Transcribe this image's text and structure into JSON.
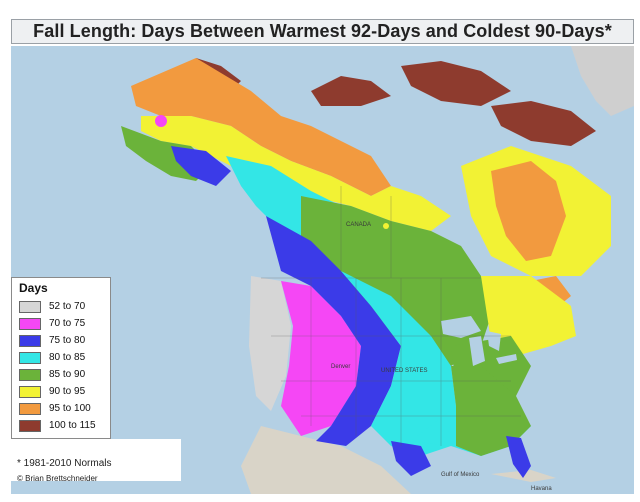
{
  "title": "Fall Length: Days Between Warmest 92-Days and Coldest 90-Days*",
  "legend": {
    "title": "Days",
    "items": [
      {
        "label": "52 to 70",
        "color": "#d6d6d6"
      },
      {
        "label": "70 to 75",
        "color": "#f547f5"
      },
      {
        "label": "75 to 80",
        "color": "#3b3be8"
      },
      {
        "label": "80 to 85",
        "color": "#33e6e6"
      },
      {
        "label": "85 to 90",
        "color": "#6bb33a"
      },
      {
        "label": "90 to 95",
        "color": "#f2f234"
      },
      {
        "label": "95 to 100",
        "color": "#f29a3f"
      },
      {
        "label": "100 to 115",
        "color": "#8e3b2e"
      }
    ]
  },
  "footnote": "* 1981-2010 Normals",
  "credit": "© Brian Brettschneider",
  "map_labels": {
    "canada": "CANADA",
    "united_states": "UNITED STATES",
    "denver": "Denver",
    "havana": "Havana",
    "gulf_of_mexico": "Gulf of Mexico"
  }
}
